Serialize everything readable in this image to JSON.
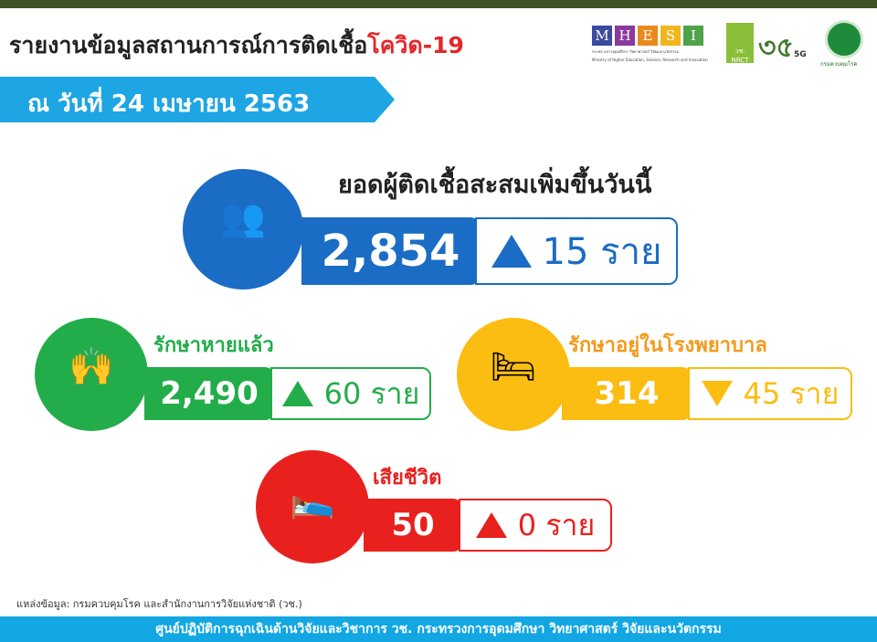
{
  "header": {
    "title": "รายงานข้อมูลสถานการณ์การติดเชื้อ",
    "title_highlight": "โควิด-19",
    "date": "ณ วันที่ 24 เมษายน 2563"
  },
  "logos": {
    "mhesi_letters": [
      "M",
      "H",
      "E",
      "S",
      "I"
    ],
    "mhesi_colors": [
      "#3a4aa0",
      "#8a3a9c",
      "#e98a1e",
      "#f0b61f",
      "#4ea24a"
    ],
    "mhesi_sub": "กระทรวงการอุดมศึกษา วิทยาศาสตร์ วิจัยและนวัตกรรม",
    "mhesi_sub_en": "Ministry of Higher Education, Science, Research and Innovation",
    "nrct": "วช. NRCT",
    "fiveg": "5G",
    "ddc": "กรมควบคุมโรค"
  },
  "cumulative": {
    "label": "ยอดผู้ติดเชื้อสะสมเพิ่มขึ้นวันนี้",
    "value": "2,854",
    "change": "15 ราย",
    "direction": "up",
    "color": "#1b6cc4"
  },
  "recovered": {
    "label": "รักษาหายแล้ว",
    "value": "2,490",
    "change": "60 ราย",
    "direction": "up",
    "color": "#23ad4a"
  },
  "hospitalized": {
    "label": "รักษาอยู่ในโรงพยาบาล",
    "value": "314",
    "change": "45 ราย",
    "direction": "down",
    "color": "#fbbd12",
    "label_color": "#f39a1a"
  },
  "deaths": {
    "label": "เสียชีวิต",
    "value": "50",
    "change": "0 ราย",
    "direction": "up",
    "color": "#e8211f"
  },
  "source": "แหล่งข้อมูล: กรมควบคุมโรค และสำนักงานการวิจัยแห่งชาติ (วช.)",
  "footer": "ศูนย์ปฏิบัติการฉุกเฉินด้านวิจัยและวิชาการ   วช.   กระทรวงการอุดมศึกษา วิทยาศาสตร์ วิจัยและนวัตกรรม"
}
